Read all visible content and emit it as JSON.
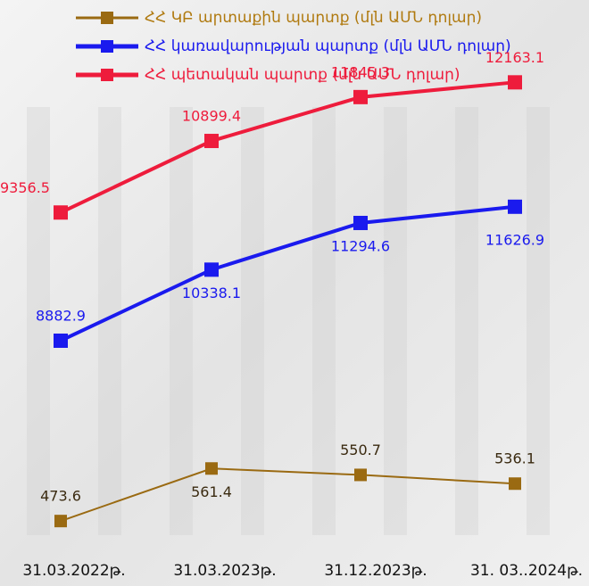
{
  "chart_data": {
    "type": "line",
    "categories": [
      "31.03.2022թ.",
      "31.03.2023թ.",
      "31.12.2023թ.",
      "31. 03..2024թ."
    ],
    "series": [
      {
        "name": "ՀՀ ԿԲ արտաքին պարտք (մլն ԱՄՆ դոլար)",
        "color": "#9a6a12",
        "values": [
          473.6,
          561.4,
          550.7,
          536.1
        ],
        "ylim": [
          450,
          1225
        ]
      },
      {
        "name": "ՀՀ կառավարության պարտք (մլն ԱՄՆ դոլար)",
        "color": "#1a1aee",
        "values": [
          8882.9,
          10338.1,
          11294.6,
          11626.9
        ],
        "ylim": [
          4900,
          14400
        ]
      },
      {
        "name": "ՀՀ պետական պարտք (մլն ԱՄՆ դոլար)",
        "color": "#ee1c3c",
        "values": [
          9356.5,
          10899.4,
          11845.3,
          12163.1
        ],
        "ylim": [
          2400,
          12400
        ]
      }
    ]
  }
}
